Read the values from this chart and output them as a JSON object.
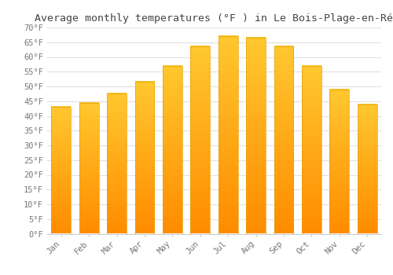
{
  "title": "Average monthly temperatures (°F ) in Le Bois-Plage-en-Ré",
  "months": [
    "Jan",
    "Feb",
    "Mar",
    "Apr",
    "May",
    "Jun",
    "Jul",
    "Aug",
    "Sep",
    "Oct",
    "Nov",
    "Dec"
  ],
  "values": [
    43,
    44.5,
    47.5,
    51.5,
    57,
    63.5,
    67,
    66.5,
    63.5,
    57,
    49,
    44
  ],
  "bar_color_top": "#FFC830",
  "bar_color_bottom": "#FF8C00",
  "background_color": "#FFFFFF",
  "grid_color": "#E0E0E0",
  "text_color": "#777777",
  "title_color": "#444444",
  "ylim": [
    0,
    70
  ],
  "ytick_step": 5,
  "title_fontsize": 9.5,
  "tick_fontsize": 7.5,
  "bar_width": 0.7
}
